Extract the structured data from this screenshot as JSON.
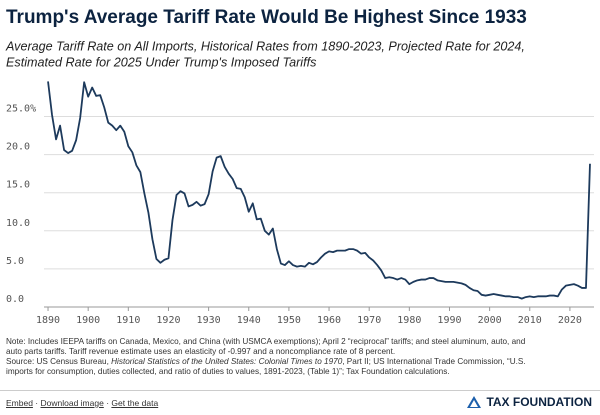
{
  "chart_data": {
    "type": "line",
    "title": "Trump's Average Tariff Rate Would Be Highest Since 1933",
    "subtitle": [
      "Average Tariff Rate on All Imports, Historical Rates from 1890-2023, Projected Rate for 2024,",
      "Estimated Rate for 2025 Under Trump's Imposed Tariffs"
    ],
    "x": [
      1890,
      1891,
      1892,
      1893,
      1894,
      1895,
      1896,
      1897,
      1898,
      1899,
      1900,
      1901,
      1902,
      1903,
      1904,
      1905,
      1906,
      1907,
      1908,
      1909,
      1910,
      1911,
      1912,
      1913,
      1914,
      1915,
      1916,
      1917,
      1918,
      1919,
      1920,
      1921,
      1922,
      1923,
      1924,
      1925,
      1926,
      1927,
      1928,
      1929,
      1930,
      1931,
      1932,
      1933,
      1934,
      1935,
      1936,
      1937,
      1938,
      1939,
      1940,
      1941,
      1942,
      1943,
      1944,
      1945,
      1946,
      1947,
      1948,
      1949,
      1950,
      1951,
      1952,
      1953,
      1954,
      1955,
      1956,
      1957,
      1958,
      1959,
      1960,
      1961,
      1962,
      1963,
      1964,
      1965,
      1966,
      1967,
      1968,
      1969,
      1970,
      1971,
      1972,
      1973,
      1974,
      1975,
      1976,
      1977,
      1978,
      1979,
      1980,
      1981,
      1982,
      1983,
      1984,
      1985,
      1986,
      1987,
      1988,
      1989,
      1990,
      1991,
      1992,
      1993,
      1994,
      1995,
      1996,
      1997,
      1998,
      1999,
      2000,
      2001,
      2002,
      2003,
      2004,
      2005,
      2006,
      2007,
      2008,
      2009,
      2010,
      2011,
      2012,
      2013,
      2014,
      2015,
      2016,
      2017,
      2018,
      2019,
      2020,
      2021,
      2022,
      2023,
      2024,
      2025
    ],
    "series": [
      {
        "color": "#1d3a5c",
        "values": [
          29.6,
          25.2,
          22.0,
          23.8,
          20.6,
          20.2,
          20.5,
          21.9,
          24.8,
          29.5,
          27.6,
          28.8,
          27.7,
          27.8,
          26.2,
          24.2,
          23.8,
          23.2,
          23.8,
          23.0,
          21.1,
          20.3,
          18.6,
          17.7,
          14.9,
          12.4,
          8.9,
          6.3,
          5.8,
          6.2,
          6.4,
          11.4,
          14.7,
          15.2,
          14.9,
          13.2,
          13.4,
          13.8,
          13.3,
          13.5,
          14.8,
          17.8,
          19.6,
          19.8,
          18.4,
          17.5,
          16.8,
          15.6,
          15.5,
          14.4,
          12.5,
          13.6,
          11.5,
          11.6,
          10.0,
          9.5,
          10.3,
          7.6,
          5.7,
          5.5,
          6.0,
          5.5,
          5.3,
          5.4,
          5.3,
          5.8,
          5.6,
          5.9,
          6.5,
          7.0,
          7.3,
          7.2,
          7.4,
          7.4,
          7.4,
          7.6,
          7.6,
          7.4,
          7.0,
          7.1,
          6.5,
          6.1,
          5.5,
          4.8,
          3.8,
          3.9,
          3.8,
          3.6,
          3.8,
          3.6,
          3.0,
          3.3,
          3.5,
          3.6,
          3.6,
          3.8,
          3.8,
          3.5,
          3.4,
          3.3,
          3.3,
          3.3,
          3.2,
          3.1,
          2.9,
          2.5,
          2.2,
          2.1,
          1.6,
          1.5,
          1.6,
          1.7,
          1.6,
          1.5,
          1.4,
          1.4,
          1.3,
          1.3,
          1.1,
          1.3,
          1.4,
          1.3,
          1.4,
          1.4,
          1.4,
          1.5,
          1.5,
          1.4,
          2.3,
          2.8,
          2.9,
          3.0,
          2.8,
          2.5,
          2.5,
          18.8
        ]
      }
    ],
    "xlim": [
      1888,
      2026
    ],
    "xticks": [
      1890,
      1900,
      1910,
      1920,
      1930,
      1940,
      1950,
      1960,
      1970,
      1980,
      1990,
      2000,
      2010,
      2020
    ],
    "ylim": [
      0,
      30
    ],
    "yticks": [
      {
        "value": 0,
        "label": "0.0"
      },
      {
        "value": 5,
        "label": "5.0"
      },
      {
        "value": 10,
        "label": "10.0"
      },
      {
        "value": 15,
        "label": "15.0"
      },
      {
        "value": 20,
        "label": "20.0"
      },
      {
        "value": 25,
        "label": "25.0%"
      }
    ],
    "grid": true
  },
  "footer": {
    "note": [
      "Note: Includes IEEPA tariffs on Canada, Mexico, and China (with USMCA exemptions); April 2 “reciprocal” tariffs; and steel aluminum, auto, and",
      "auto parts tariffs. Tariff revenue estimate uses an elasticity of -0.997 and a noncompliance rate of 8 percent."
    ],
    "source": [
      [
        "Source: US Census Bureau, ",
        "Historical Statistics of the United States: Colonial Times to 1970",
        ", Part II; US International Trade Commission, “U.S."
      ],
      [
        "imports for consumption, duties collected, and ratio of duties to values, 1891-2023, (Table 1)”; Tax Foundation calculations."
      ]
    ],
    "links": [
      "Embed",
      "Download image",
      "Get the data"
    ],
    "brand": "TAX FOUNDATION"
  }
}
